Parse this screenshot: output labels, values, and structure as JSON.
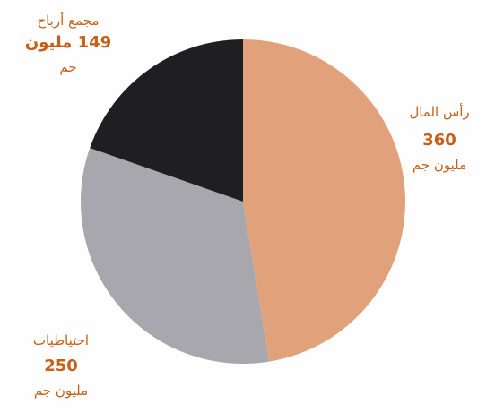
{
  "chart_data": {
    "type": "pie",
    "title": "",
    "slices": [
      {
        "label": "رأس المال",
        "value": 360,
        "value_text": "360",
        "unit": "مليون جم",
        "color": "#e1a27b"
      },
      {
        "label": "احتياطيات",
        "value": 250,
        "value_text": "250",
        "unit": "مليون جم",
        "color": "#a8a7ad"
      },
      {
        "label": "مجمع أرباح",
        "value": 149,
        "value_text": "149 مليون",
        "unit": "جم",
        "color": "#1f1f21"
      }
    ],
    "label_color": "#c85f16"
  }
}
